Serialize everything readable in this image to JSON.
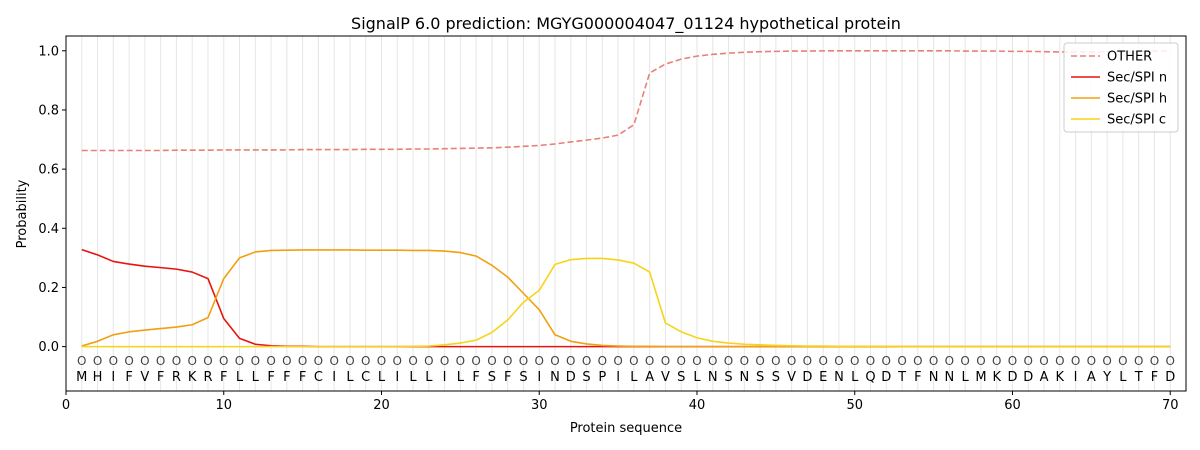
{
  "chart_data": {
    "type": "line",
    "title": "SignalP 6.0 prediction: MGYG000004047_01124 hypothetical protein",
    "xlabel": "Protein sequence",
    "ylabel": "Probability",
    "xlim": [
      0,
      71
    ],
    "ylim": [
      -0.15,
      1.05
    ],
    "xticks": [
      0,
      10,
      20,
      30,
      40,
      50,
      60,
      70
    ],
    "yticks": [
      0.0,
      0.2,
      0.4,
      0.6,
      0.8,
      1.0
    ],
    "ytick_labels": [
      "0.0",
      "0.2",
      "0.4",
      "0.6",
      "0.8",
      "1.0"
    ],
    "grid": "vertical lines at each residue",
    "legend_position": "top-right",
    "sequence": [
      "M",
      "H",
      "I",
      "F",
      "V",
      "F",
      "R",
      "K",
      "R",
      "F",
      "L",
      "L",
      "F",
      "F",
      "F",
      "C",
      "I",
      "L",
      "C",
      "L",
      "I",
      "L",
      "L",
      "I",
      "L",
      "F",
      "S",
      "F",
      "S",
      "I",
      "N",
      "D",
      "S",
      "P",
      "I",
      "L",
      "A",
      "V",
      "S",
      "L",
      "N",
      "S",
      "N",
      "S",
      "S",
      "V",
      "D",
      "E",
      "N",
      "L",
      "Q",
      "D",
      "T",
      "F",
      "N",
      "N",
      "L",
      "M",
      "K",
      "D",
      "D",
      "A",
      "K",
      "I",
      "A",
      "Y",
      "L",
      "T",
      "F",
      "D"
    ],
    "predicted_labels": [
      "O",
      "O",
      "O",
      "O",
      "O",
      "O",
      "O",
      "O",
      "O",
      "O",
      "O",
      "O",
      "O",
      "O",
      "O",
      "O",
      "O",
      "O",
      "O",
      "O",
      "O",
      "O",
      "O",
      "O",
      "O",
      "O",
      "O",
      "O",
      "O",
      "O",
      "O",
      "O",
      "O",
      "O",
      "O",
      "O",
      "O",
      "O",
      "O",
      "O",
      "O",
      "O",
      "O",
      "O",
      "O",
      "O",
      "O",
      "O",
      "O",
      "O",
      "O",
      "O",
      "O",
      "O",
      "O",
      "O",
      "O",
      "O",
      "O",
      "O",
      "O",
      "O",
      "O",
      "O",
      "O",
      "O",
      "O",
      "O",
      "O",
      "O"
    ],
    "series": [
      {
        "name": "OTHER",
        "color": "#e8807a",
        "dash": true,
        "values": [
          0.663,
          0.663,
          0.663,
          0.663,
          0.663,
          0.663,
          0.664,
          0.664,
          0.664,
          0.665,
          0.665,
          0.665,
          0.665,
          0.665,
          0.666,
          0.666,
          0.666,
          0.666,
          0.667,
          0.667,
          0.667,
          0.668,
          0.668,
          0.669,
          0.67,
          0.671,
          0.672,
          0.674,
          0.677,
          0.68,
          0.685,
          0.692,
          0.698,
          0.705,
          0.715,
          0.75,
          0.925,
          0.955,
          0.972,
          0.982,
          0.988,
          0.992,
          0.995,
          0.997,
          0.998,
          0.999,
          0.999,
          1.0,
          1.0,
          1.0,
          1.0,
          1.0,
          1.0,
          1.0,
          1.0,
          1.0,
          0.999,
          0.999,
          0.999,
          0.998,
          0.998,
          0.997,
          0.996,
          0.996,
          0.996,
          0.997,
          0.997,
          0.998,
          0.999,
          0.999
        ]
      },
      {
        "name": "Sec/SPI n",
        "color": "#e8140e",
        "dash": false,
        "values": [
          0.328,
          0.31,
          0.288,
          0.279,
          0.272,
          0.267,
          0.262,
          0.252,
          0.23,
          0.095,
          0.028,
          0.008,
          0.003,
          0.001,
          0.001,
          0.0,
          0.0,
          0.0,
          0.0,
          0.0,
          0.0,
          0.0,
          0.0,
          0.0,
          0.0,
          0.0,
          0.0,
          0.0,
          0.0,
          0.0,
          0.0,
          0.0,
          0.0,
          0.0,
          0.0,
          0.0,
          0.0,
          0.0,
          0.0,
          0.0,
          0.0,
          0.0,
          0.0,
          0.0,
          0.0,
          0.0,
          0.0,
          0.0,
          0.0,
          0.0,
          0.0,
          0.0,
          0.0,
          0.0,
          0.0,
          0.0,
          0.0,
          0.0,
          0.0,
          0.0,
          0.0,
          0.0,
          0.0,
          0.0,
          0.0,
          0.0,
          0.0,
          0.0,
          0.0,
          0.0
        ]
      },
      {
        "name": "Sec/SPI h",
        "color": "#f0a010",
        "dash": false,
        "values": [
          0.002,
          0.018,
          0.04,
          0.05,
          0.056,
          0.061,
          0.066,
          0.074,
          0.098,
          0.23,
          0.3,
          0.32,
          0.325,
          0.326,
          0.327,
          0.327,
          0.327,
          0.327,
          0.326,
          0.326,
          0.326,
          0.325,
          0.325,
          0.323,
          0.318,
          0.306,
          0.275,
          0.235,
          0.18,
          0.125,
          0.04,
          0.018,
          0.009,
          0.004,
          0.002,
          0.001,
          0.001,
          0.0,
          0.0,
          0.0,
          0.0,
          0.0,
          0.0,
          0.0,
          0.0,
          0.0,
          0.0,
          0.0,
          0.0,
          0.0,
          0.0,
          0.0,
          0.0,
          0.0,
          0.0,
          0.0,
          0.0,
          0.0,
          0.0,
          0.0,
          0.0,
          0.0,
          0.0,
          0.0,
          0.0,
          0.0,
          0.0,
          0.0,
          0.0,
          0.0
        ]
      },
      {
        "name": "Sec/SPI c",
        "color": "#f7d418",
        "dash": false,
        "values": [
          0.0,
          0.0,
          0.0,
          0.0,
          0.0,
          0.0,
          0.0,
          0.0,
          0.0,
          0.0,
          0.0,
          0.0,
          0.0,
          0.0,
          0.0,
          0.0,
          0.0,
          0.0,
          0.0,
          0.0,
          0.0,
          0.001,
          0.002,
          0.006,
          0.012,
          0.022,
          0.048,
          0.09,
          0.15,
          0.19,
          0.278,
          0.294,
          0.298,
          0.298,
          0.293,
          0.282,
          0.252,
          0.08,
          0.05,
          0.03,
          0.018,
          0.012,
          0.008,
          0.006,
          0.004,
          0.003,
          0.002,
          0.002,
          0.001,
          0.001,
          0.001,
          0.001,
          0.0,
          0.0,
          0.0,
          0.0,
          0.0,
          0.0,
          0.0,
          0.0,
          0.0,
          0.0,
          0.0,
          0.0,
          0.0,
          0.0,
          0.0,
          0.0,
          0.0,
          0.0
        ]
      }
    ]
  }
}
